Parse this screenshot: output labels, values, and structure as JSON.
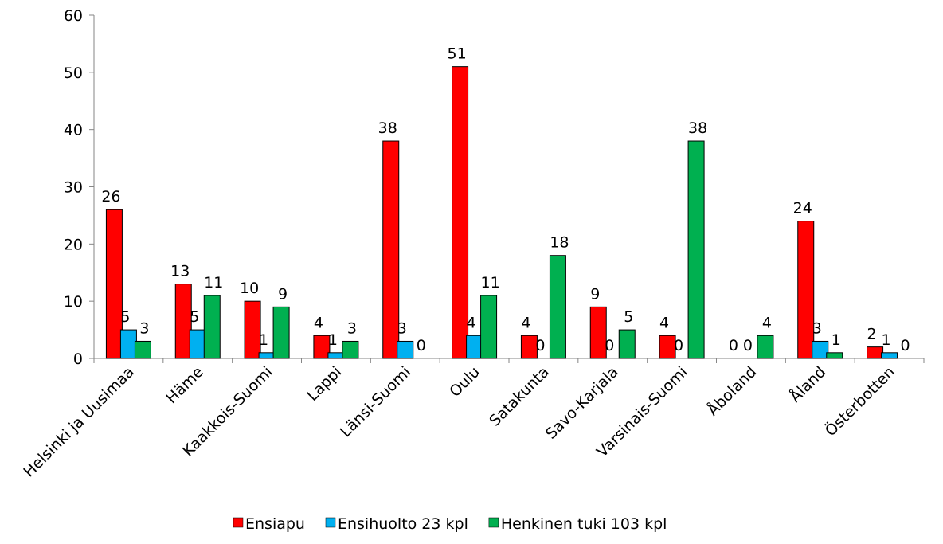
{
  "chart_data": {
    "type": "bar",
    "title": "",
    "xlabel": "",
    "ylabel": "",
    "ylim": [
      0,
      60
    ],
    "yticks": [
      0,
      10,
      20,
      30,
      40,
      50,
      60
    ],
    "grid": false,
    "legend_position": "bottom",
    "categories": [
      "Helsinki ja Uusimaa",
      "Häme",
      "Kaakkois-Suomi",
      "Lappi",
      "Länsi-Suomi",
      "Oulu",
      "Satakunta",
      "Savo-Karjala",
      "Varsinais-Suomi",
      "Åboland",
      "Åland",
      "Österbotten"
    ],
    "series": [
      {
        "name": "Ensiapu",
        "color": "#ff0000",
        "values": [
          26,
          13,
          10,
          4,
          38,
          51,
          4,
          9,
          4,
          0,
          24,
          2
        ]
      },
      {
        "name": "Ensihuolto 23 kpl",
        "color": "#00b0f0",
        "values": [
          5,
          5,
          1,
          1,
          3,
          4,
          0,
          0,
          0,
          0,
          3,
          1
        ]
      },
      {
        "name": "Henkinen tuki 103 kpl",
        "color": "#00b050",
        "values": [
          3,
          11,
          9,
          3,
          0,
          11,
          18,
          5,
          38,
          4,
          1,
          0
        ]
      }
    ]
  }
}
